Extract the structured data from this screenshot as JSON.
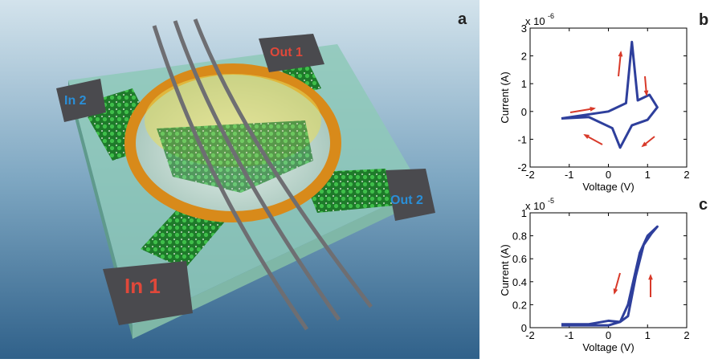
{
  "illustration": {
    "panel_label": "a",
    "labels": [
      "In 1",
      "In 2",
      "Out 1",
      "Out 2"
    ]
  },
  "chart_data": [
    {
      "type": "line",
      "panel_label": "b",
      "scale_label": "x 10",
      "scale_exponent": "-6",
      "x_label": "Voltage (V)",
      "y_label": "Current (A)",
      "color": "#2e3f9c",
      "xlim": [
        -2,
        2
      ],
      "xticks": [
        -2,
        -1,
        0,
        1,
        2
      ],
      "ylim": [
        -2,
        3
      ],
      "yticks": [
        -2,
        -1,
        0,
        1,
        2,
        3
      ],
      "x": [
        -1.2,
        0.0,
        0.45,
        0.6,
        0.75,
        1.05,
        1.25,
        1.0,
        0.6,
        0.3,
        0.1,
        -0.5,
        -1.2
      ],
      "values": [
        -0.25,
        0.0,
        0.3,
        2.5,
        0.4,
        0.6,
        0.15,
        -0.3,
        -0.5,
        -1.3,
        -0.6,
        -0.2,
        -0.25
      ]
    },
    {
      "type": "line",
      "panel_label": "c",
      "scale_label": "x 10",
      "scale_exponent": "-5",
      "x_label": "Voltage (V)",
      "y_label": "Current (A)",
      "color": "#2e3f9c",
      "xlim": [
        -2,
        2
      ],
      "xticks": [
        -2,
        -1,
        0,
        1,
        2
      ],
      "ylim": [
        0,
        1
      ],
      "yticks": [
        0,
        0.2,
        0.4,
        0.6,
        0.8,
        1
      ],
      "x": [
        -1.2,
        0.0,
        0.3,
        0.5,
        0.8,
        1.0,
        1.25,
        1.1,
        0.9,
        0.7,
        0.5,
        0.3,
        0.0,
        -0.5,
        -1.2
      ],
      "values": [
        0.02,
        0.02,
        0.05,
        0.2,
        0.65,
        0.8,
        0.88,
        0.82,
        0.72,
        0.45,
        0.1,
        0.05,
        0.06,
        0.03,
        0.03
      ]
    }
  ]
}
